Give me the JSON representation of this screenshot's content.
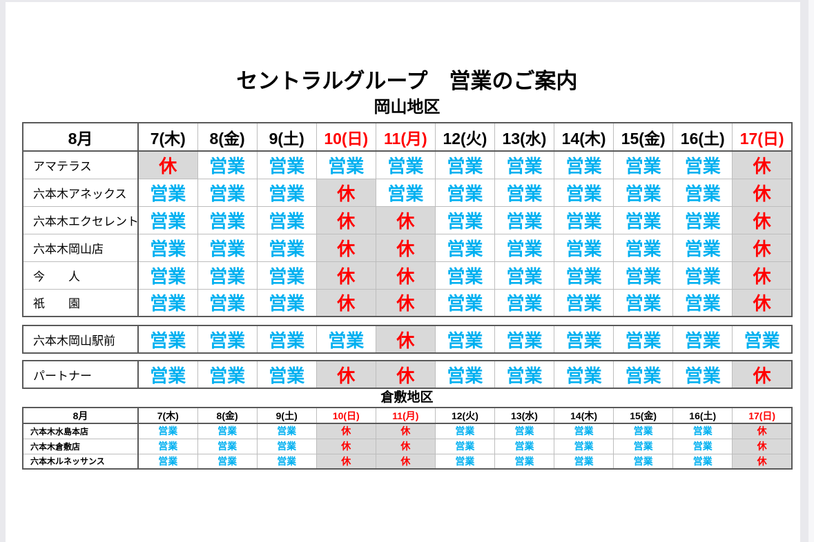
{
  "page": {
    "title": "セントラルグループ　営業のご案内",
    "okayama_label": "岡山地区",
    "kurashiki_label": "倉敷地区"
  },
  "legend": {
    "open": "営業",
    "closed": "休"
  },
  "colors": {
    "open": "#00b0f0",
    "closed": "#ff0000",
    "holiday_header": "#ff0000",
    "closed_bg": "#d9d9d9",
    "border_dark": "#595959",
    "border_light": "#bdbdbd"
  },
  "columns": [
    {
      "label": "8月",
      "red": false
    },
    {
      "label": "7(木)",
      "red": false
    },
    {
      "label": "8(金)",
      "red": false
    },
    {
      "label": "9(土)",
      "red": false
    },
    {
      "label": "10(日)",
      "red": true
    },
    {
      "label": "11(月)",
      "red": true
    },
    {
      "label": "12(火)",
      "red": false
    },
    {
      "label": "13(水)",
      "red": false
    },
    {
      "label": "14(木)",
      "red": false
    },
    {
      "label": "15(金)",
      "red": false
    },
    {
      "label": "16(土)",
      "red": false
    },
    {
      "label": "17(日)",
      "red": true
    }
  ],
  "tables": {
    "okayama": {
      "size": "large",
      "header": true,
      "rows": [
        {
          "name": "アマテラス",
          "days": [
            "休",
            "営業",
            "営業",
            "営業",
            "営業",
            "営業",
            "営業",
            "営業",
            "営業",
            "営業",
            "休"
          ]
        },
        {
          "name": "六本木アネックス",
          "days": [
            "営業",
            "営業",
            "営業",
            "休",
            "営業",
            "営業",
            "営業",
            "営業",
            "営業",
            "営業",
            "休"
          ]
        },
        {
          "name": "六本木エクセレント",
          "days": [
            "営業",
            "営業",
            "営業",
            "休",
            "休",
            "営業",
            "営業",
            "営業",
            "営業",
            "営業",
            "休"
          ]
        },
        {
          "name": "六本木岡山店",
          "days": [
            "営業",
            "営業",
            "営業",
            "休",
            "休",
            "営業",
            "営業",
            "営業",
            "営業",
            "営業",
            "休"
          ]
        },
        {
          "name": "今　　人",
          "days": [
            "営業",
            "営業",
            "営業",
            "休",
            "休",
            "営業",
            "営業",
            "営業",
            "営業",
            "営業",
            "休"
          ]
        },
        {
          "name": "祇　　園",
          "days": [
            "営業",
            "営業",
            "営業",
            "休",
            "休",
            "営業",
            "営業",
            "営業",
            "営業",
            "営業",
            "休"
          ]
        }
      ]
    },
    "ekimae": {
      "size": "large",
      "header": false,
      "rows": [
        {
          "name": "六本木岡山駅前",
          "days": [
            "営業",
            "営業",
            "営業",
            "営業",
            "休",
            "営業",
            "営業",
            "営業",
            "営業",
            "営業",
            "営業"
          ]
        }
      ]
    },
    "partner": {
      "size": "large",
      "header": false,
      "rows": [
        {
          "name": "パートナー",
          "days": [
            "営業",
            "営業",
            "営業",
            "休",
            "休",
            "営業",
            "営業",
            "営業",
            "営業",
            "営業",
            "休"
          ]
        }
      ]
    },
    "kurashiki": {
      "size": "small",
      "header": true,
      "rows": [
        {
          "name": "六本木水島本店",
          "days": [
            "営業",
            "営業",
            "営業",
            "休",
            "休",
            "営業",
            "営業",
            "営業",
            "営業",
            "営業",
            "休"
          ]
        },
        {
          "name": "六本木倉敷店",
          "days": [
            "営業",
            "営業",
            "営業",
            "休",
            "休",
            "営業",
            "営業",
            "営業",
            "営業",
            "営業",
            "休"
          ]
        },
        {
          "name": "六本木ルネッサンス",
          "days": [
            "営業",
            "営業",
            "営業",
            "休",
            "休",
            "営業",
            "営業",
            "営業",
            "営業",
            "営業",
            "休"
          ]
        }
      ]
    }
  }
}
